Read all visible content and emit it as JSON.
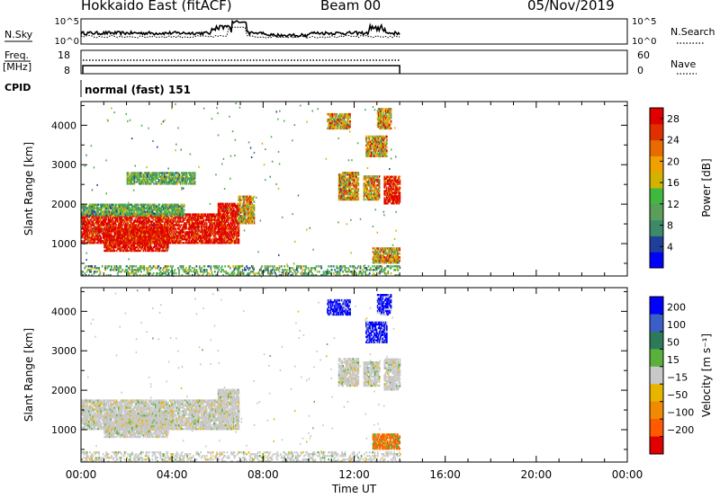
{
  "header": {
    "station": "Hokkaido East (fitACF)",
    "beam": "Beam 00",
    "date": "05/Nov/2019"
  },
  "top_panels": {
    "nsky_label": "N.Sky",
    "nsky_ticks": [
      "10^5",
      "10^0"
    ],
    "nsearch_label": "N.Search",
    "freq_label": "Freq.",
    "freq_unit": "[MHz]",
    "freq_ticks": [
      "18",
      "8"
    ],
    "nave_label": "Nave",
    "nave_ticks": [
      "60",
      "0"
    ],
    "cpid_label": "CPID",
    "cpid_value": "normal (fast) 151"
  },
  "colors": {
    "power": [
      "#0000ff",
      "#1f3f99",
      "#3d8a6b",
      "#5a9e5a",
      "#3fb83f",
      "#d2b400",
      "#f0a000",
      "#e86a00",
      "#e03000",
      "#e00000"
    ],
    "velocity_pos": [
      "#0000ff",
      "#3b5ec8",
      "#2d7a5a",
      "#5ab03c"
    ],
    "velocity_neutral": "#c8c8c8",
    "velocity_neg": [
      "#e8b400",
      "#f08a00",
      "#ff5a00",
      "#e00000"
    ]
  },
  "chart_data": [
    {
      "type": "heatmap",
      "name": "power",
      "xlabel": "Time UT",
      "ylabel": "Slant Range [km]",
      "x_range_hours": [
        0,
        24
      ],
      "x_ticks": [
        "00:00",
        "04:00",
        "08:00",
        "12:00",
        "16:00",
        "20:00",
        "00:00"
      ],
      "y_range": [
        180,
        4600
      ],
      "y_ticks": [
        1000,
        2000,
        3000,
        4000
      ],
      "colorbar": {
        "label": "Power [dB]",
        "ticks": [
          "4",
          "8",
          "12",
          "16",
          "20",
          "24",
          "28"
        ],
        "range": [
          0,
          30
        ]
      },
      "data_end_hours": 14.0,
      "regions": [
        {
          "t0": 0.0,
          "t1": 6.2,
          "r0": 1000,
          "r1": 1750,
          "level": "high"
        },
        {
          "t0": 1.0,
          "t1": 3.8,
          "r0": 800,
          "r1": 1400,
          "level": "high"
        },
        {
          "t0": 6.0,
          "t1": 6.9,
          "r0": 1000,
          "r1": 2000,
          "level": "high"
        },
        {
          "t0": 6.9,
          "t1": 7.6,
          "r0": 1500,
          "r1": 2200,
          "level": "mid"
        },
        {
          "t0": 0.0,
          "t1": 4.5,
          "r0": 1700,
          "r1": 2000,
          "level": "low"
        },
        {
          "t0": 2.0,
          "t1": 5.0,
          "r0": 2500,
          "r1": 2800,
          "level": "low"
        },
        {
          "t0": 10.8,
          "t1": 11.8,
          "r0": 3900,
          "r1": 4300,
          "level": "mid"
        },
        {
          "t0": 11.3,
          "t1": 12.2,
          "r0": 2100,
          "r1": 2800,
          "level": "mid"
        },
        {
          "t0": 12.4,
          "t1": 13.1,
          "r0": 2100,
          "r1": 2700,
          "level": "mid"
        },
        {
          "t0": 13.3,
          "t1": 14.0,
          "r0": 2000,
          "r1": 2700,
          "level": "high"
        },
        {
          "t0": 12.5,
          "t1": 13.4,
          "r0": 3200,
          "r1": 3700,
          "level": "mid"
        },
        {
          "t0": 13.0,
          "t1": 13.6,
          "r0": 3900,
          "r1": 4400,
          "level": "mid"
        },
        {
          "t0": 12.8,
          "t1": 14.0,
          "r0": 500,
          "r1": 900,
          "level": "mid"
        },
        {
          "t0": 0.0,
          "t1": 14.0,
          "r0": 180,
          "r1": 450,
          "level": "low"
        }
      ]
    },
    {
      "type": "heatmap",
      "name": "velocity",
      "xlabel": "Time UT",
      "ylabel": "Slant Range [km]",
      "x_range_hours": [
        0,
        24
      ],
      "x_ticks": [
        "00:00",
        "04:00",
        "08:00",
        "12:00",
        "16:00",
        "20:00",
        "00:00"
      ],
      "y_range": [
        180,
        4600
      ],
      "y_ticks": [
        1000,
        2000,
        3000,
        4000
      ],
      "colorbar": {
        "label": "Velocity [m s⁻¹]",
        "ticks": [
          "200",
          "100",
          "50",
          "15",
          "−15",
          "−50",
          "−100",
          "−200"
        ],
        "range": [
          -250,
          250
        ]
      },
      "data_end_hours": 14.0,
      "regions": [
        {
          "t0": 0.0,
          "t1": 6.2,
          "r0": 1000,
          "r1": 1750,
          "level": "neutral"
        },
        {
          "t0": 1.0,
          "t1": 3.8,
          "r0": 800,
          "r1": 1400,
          "level": "neutral"
        },
        {
          "t0": 6.0,
          "t1": 6.9,
          "r0": 1000,
          "r1": 2000,
          "level": "neutral"
        },
        {
          "t0": 10.8,
          "t1": 11.8,
          "r0": 3900,
          "r1": 4300,
          "level": "pos"
        },
        {
          "t0": 11.3,
          "t1": 12.2,
          "r0": 2100,
          "r1": 2800,
          "level": "neutral"
        },
        {
          "t0": 12.4,
          "t1": 13.1,
          "r0": 2100,
          "r1": 2700,
          "level": "neutral"
        },
        {
          "t0": 13.3,
          "t1": 14.0,
          "r0": 2000,
          "r1": 2800,
          "level": "neutral"
        },
        {
          "t0": 12.5,
          "t1": 13.4,
          "r0": 3200,
          "r1": 3700,
          "level": "pos"
        },
        {
          "t0": 13.0,
          "t1": 13.6,
          "r0": 3900,
          "r1": 4400,
          "level": "pos"
        },
        {
          "t0": 12.8,
          "t1": 14.0,
          "r0": 500,
          "r1": 900,
          "level": "neg"
        },
        {
          "t0": 0.0,
          "t1": 14.0,
          "r0": 180,
          "r1": 450,
          "level": "neutral"
        }
      ]
    }
  ]
}
